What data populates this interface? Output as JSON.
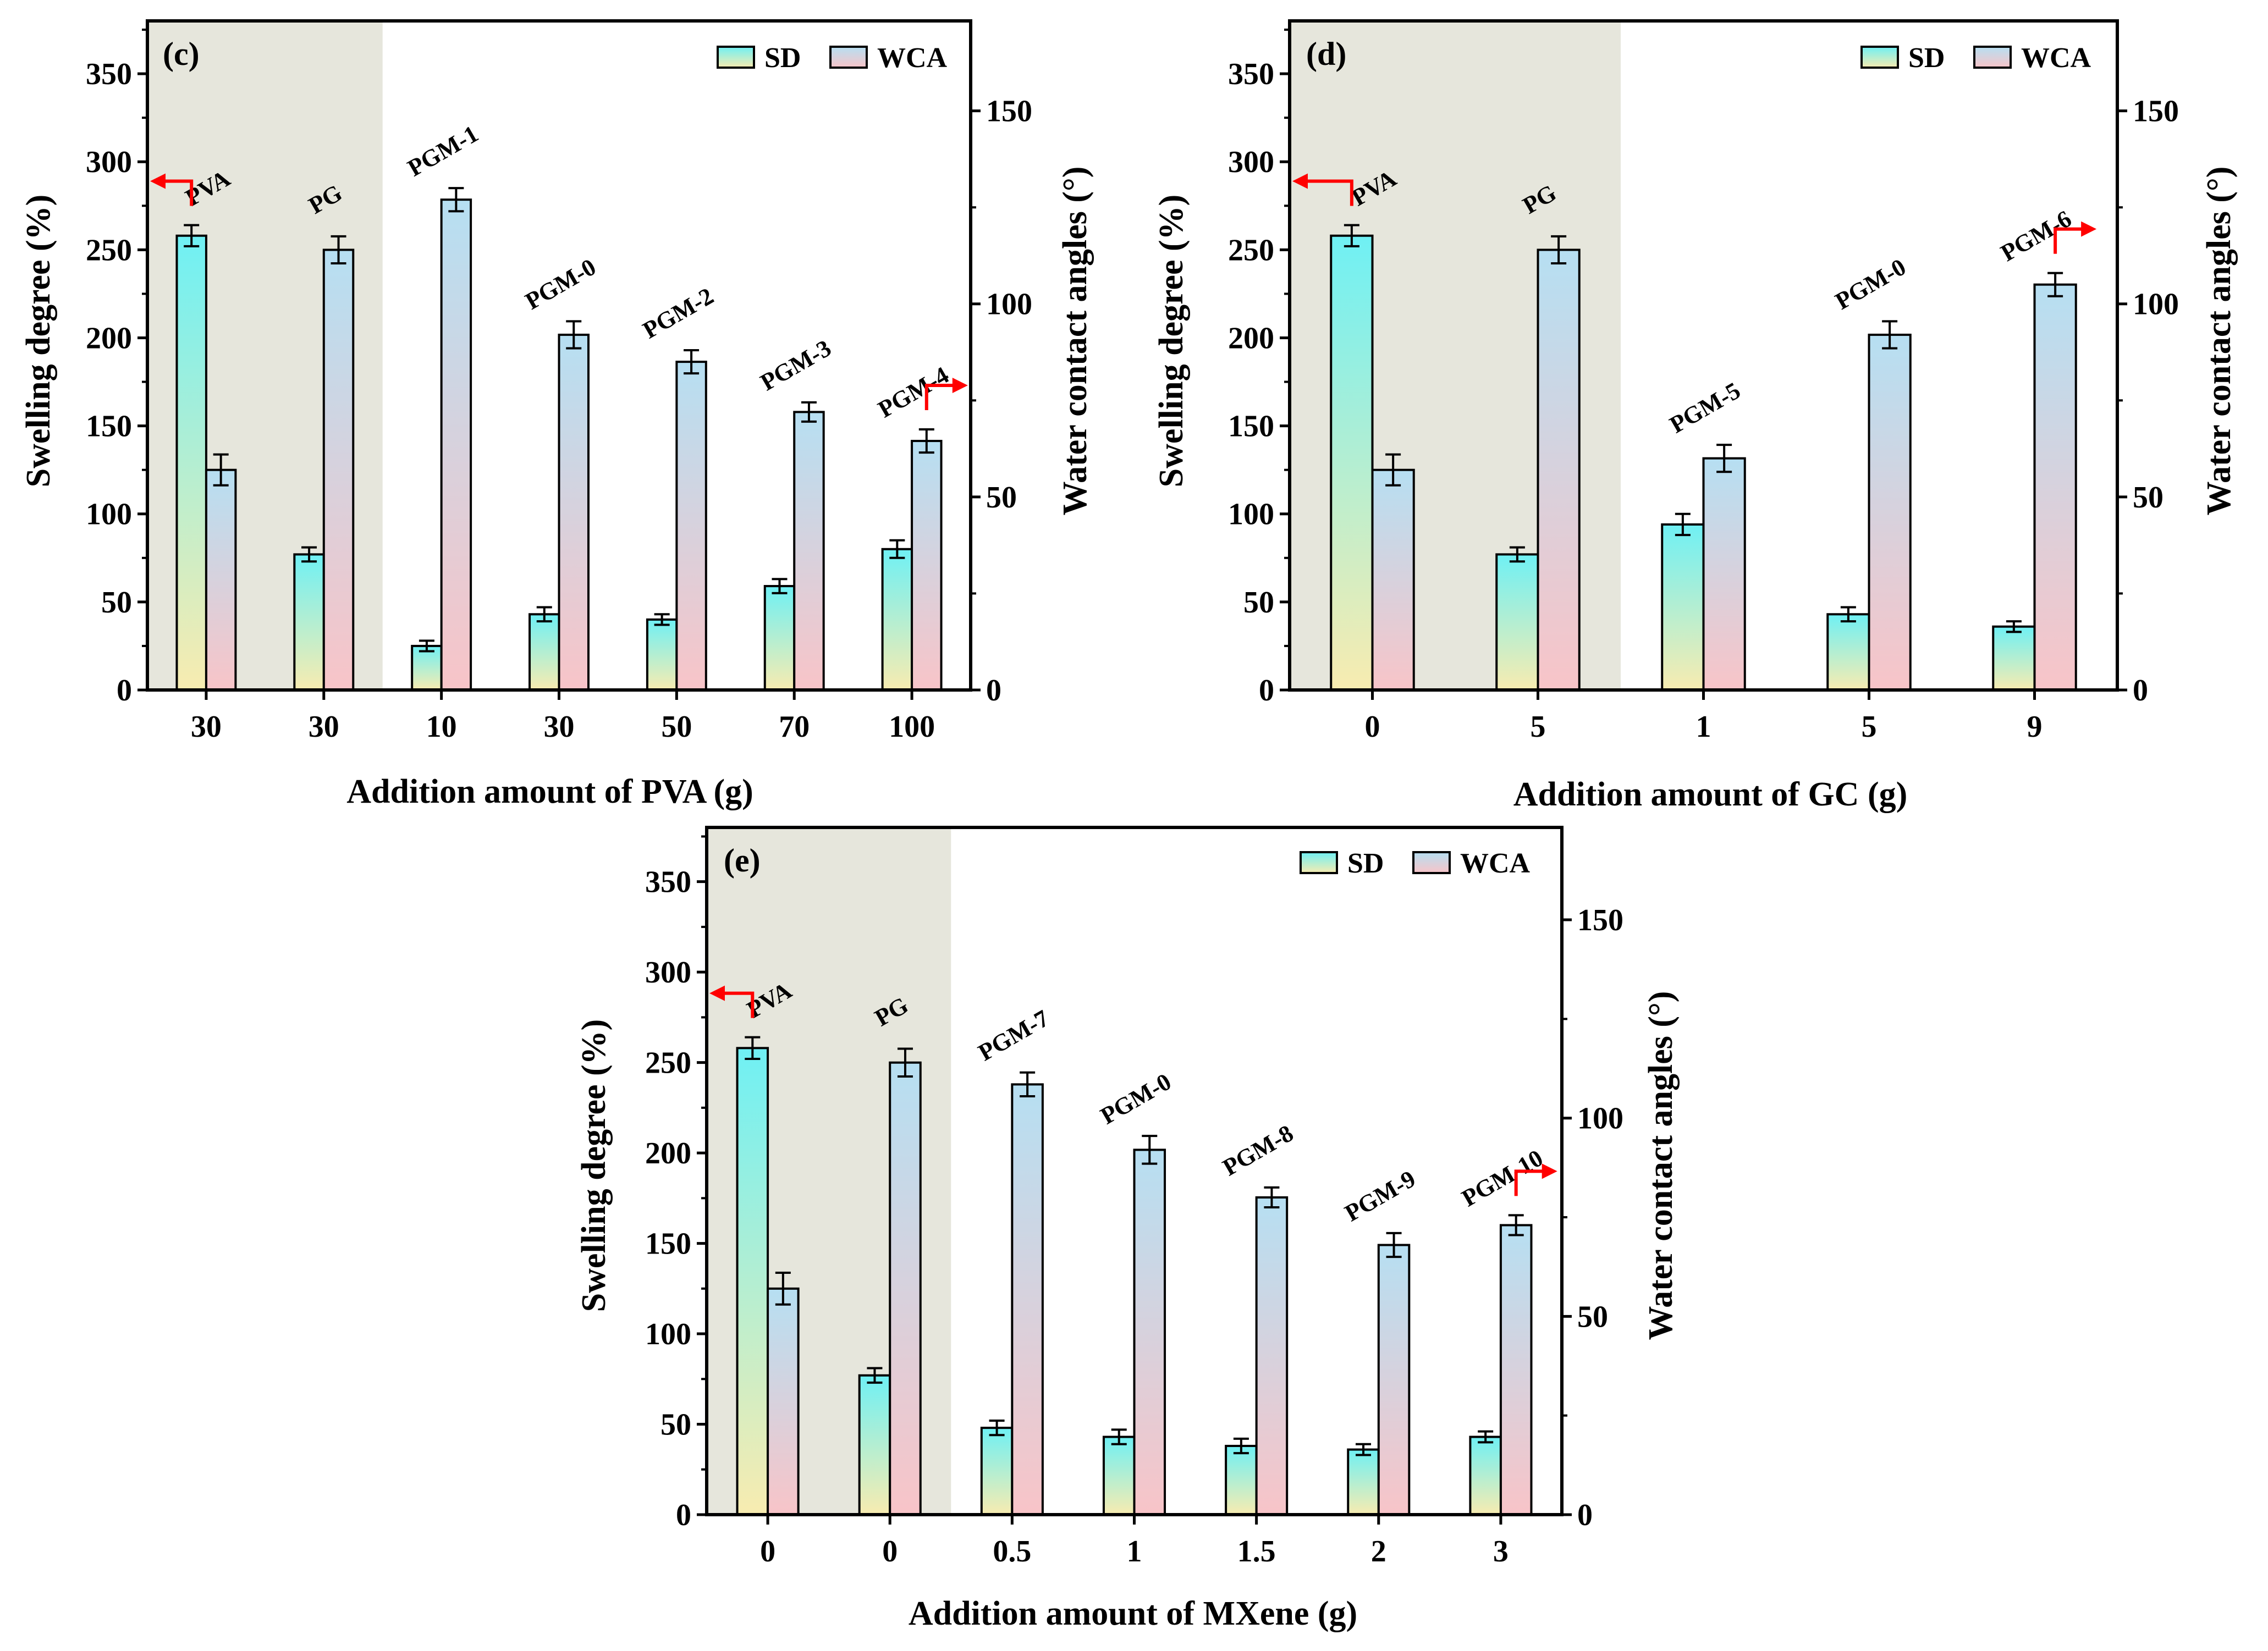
{
  "figure": {
    "sd_label": "SD",
    "wca_label": "WCA",
    "ylabel_left": "Swelling degree (%)",
    "ylabel_right": "Water contact angles (°)",
    "colors": {
      "sd_top": "#6ff0f4",
      "sd_bottom": "#f8ecb0",
      "wca_top": "#b6dff2",
      "wca_bottom": "#f8c4c8",
      "shade": "#e6e6dc",
      "arrow": "#ff0000"
    }
  },
  "chart_data": [
    {
      "type": "bar",
      "panel": "(c)",
      "xlabel": "Addition amount of PVA (g)",
      "categories": [
        "30",
        "30",
        "10",
        "30",
        "50",
        "70",
        "100"
      ],
      "sample_labels": [
        "PVA",
        "PG",
        "PGM-1",
        "PGM-0",
        "PGM-2",
        "PGM-3",
        "PGM-4"
      ],
      "shaded_categories": 2,
      "left_axis": {
        "label": "Swelling degree (%)",
        "ylim": [
          0,
          380
        ],
        "ticks": [
          0,
          50,
          100,
          150,
          200,
          250,
          300,
          350
        ]
      },
      "right_axis": {
        "label": "Water contact angles (°)",
        "ylim": [
          0,
          173.3
        ],
        "ticks": [
          0,
          50,
          100,
          150
        ]
      },
      "series": [
        {
          "name": "SD",
          "axis": "left",
          "values": [
            258,
            77,
            25,
            43,
            40,
            59,
            80
          ],
          "errors": [
            6,
            4,
            3,
            4,
            3,
            4,
            5
          ]
        },
        {
          "name": "WCA",
          "axis": "right",
          "values": [
            57,
            114,
            127,
            92,
            85,
            72,
            64.5
          ],
          "errors": [
            4,
            3.5,
            3,
            3.5,
            3,
            2.5,
            3
          ]
        }
      ],
      "arrows": [
        {
          "series": "SD",
          "category_index": 0,
          "direction": "left"
        },
        {
          "series": "WCA",
          "category_index": 6,
          "direction": "right"
        }
      ]
    },
    {
      "type": "bar",
      "panel": "(d)",
      "xlabel": "Addition amount of GC (g)",
      "categories": [
        "0",
        "5",
        "1",
        "5",
        "9"
      ],
      "sample_labels": [
        "PVA",
        "PG",
        "PGM-5",
        "PGM-0",
        "PGM-6"
      ],
      "shaded_categories": 2,
      "left_axis": {
        "label": "Swelling degree (%)",
        "ylim": [
          0,
          380
        ],
        "ticks": [
          0,
          50,
          100,
          150,
          200,
          250,
          300,
          350
        ]
      },
      "right_axis": {
        "label": "Water contact angles (°)",
        "ylim": [
          0,
          173.3
        ],
        "ticks": [
          0,
          50,
          100,
          150
        ]
      },
      "series": [
        {
          "name": "SD",
          "axis": "left",
          "values": [
            258,
            77,
            94,
            43,
            36
          ],
          "errors": [
            6,
            4,
            6,
            4,
            3
          ]
        },
        {
          "name": "WCA",
          "axis": "right",
          "values": [
            57,
            114,
            60,
            92,
            105
          ],
          "errors": [
            4,
            3.5,
            3.5,
            3.5,
            3
          ]
        }
      ],
      "arrows": [
        {
          "series": "SD",
          "category_index": 0,
          "direction": "left"
        },
        {
          "series": "WCA",
          "category_index": 4,
          "direction": "right"
        }
      ]
    },
    {
      "type": "bar",
      "panel": "(e)",
      "xlabel": "Addition amount of MXene (g)",
      "categories": [
        "0",
        "0",
        "0.5",
        "1",
        "1.5",
        "2",
        "3"
      ],
      "sample_labels": [
        "PVA",
        "PG",
        "PGM-7",
        "PGM-0",
        "PGM-8",
        "PGM-9",
        "PGM-10"
      ],
      "shaded_categories": 2,
      "left_axis": {
        "label": "Swelling degree (%)",
        "ylim": [
          0,
          380
        ],
        "ticks": [
          0,
          50,
          100,
          150,
          200,
          250,
          300,
          350
        ]
      },
      "right_axis": {
        "label": "Water contact angles (°)",
        "ylim": [
          0,
          173.3
        ],
        "ticks": [
          0,
          50,
          100,
          150
        ]
      },
      "series": [
        {
          "name": "SD",
          "axis": "left",
          "values": [
            258,
            77,
            48,
            43,
            38,
            36,
            43
          ],
          "errors": [
            6,
            4,
            4,
            4,
            4,
            3,
            3
          ]
        },
        {
          "name": "WCA",
          "axis": "right",
          "values": [
            57,
            114,
            108.5,
            92,
            80,
            68,
            73
          ],
          "errors": [
            4,
            3.5,
            3,
            3.5,
            2.5,
            3,
            2.5
          ]
        }
      ],
      "arrows": [
        {
          "series": "SD",
          "category_index": 0,
          "direction": "left"
        },
        {
          "series": "WCA",
          "category_index": 6,
          "direction": "right"
        }
      ]
    }
  ]
}
